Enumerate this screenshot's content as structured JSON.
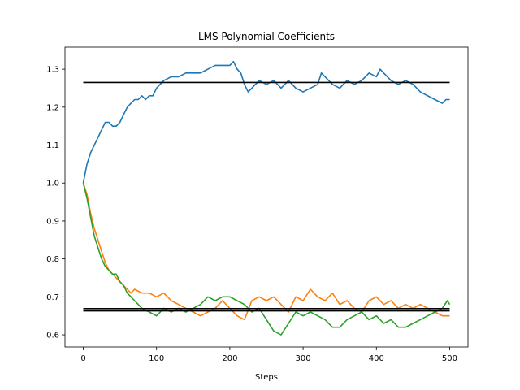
{
  "chart_data": {
    "type": "line",
    "title": "LMS Polynomial Coefficients",
    "xlabel": "Steps",
    "ylabel": "",
    "xlim": [
      -25,
      525
    ],
    "ylim": [
      0.568,
      1.358
    ],
    "xticks": [
      0,
      100,
      200,
      300,
      400,
      500
    ],
    "yticks": [
      0.6,
      0.7,
      0.8,
      0.9,
      1.0,
      1.1,
      1.2,
      1.3
    ],
    "grid": false,
    "legend": "none",
    "series": [
      {
        "color": "#1f77b4",
        "x": [
          0,
          5,
          10,
          15,
          20,
          25,
          30,
          35,
          40,
          45,
          50,
          55,
          60,
          65,
          70,
          75,
          80,
          85,
          90,
          95,
          100,
          110,
          120,
          130,
          140,
          150,
          160,
          170,
          180,
          190,
          200,
          205,
          210,
          215,
          220,
          225,
          230,
          240,
          250,
          260,
          270,
          280,
          290,
          300,
          310,
          320,
          325,
          330,
          340,
          350,
          360,
          370,
          380,
          390,
          400,
          405,
          410,
          420,
          430,
          440,
          450,
          460,
          470,
          480,
          490,
          495,
          500
        ],
        "y": [
          1.0,
          1.05,
          1.08,
          1.1,
          1.12,
          1.14,
          1.16,
          1.16,
          1.15,
          1.15,
          1.16,
          1.18,
          1.2,
          1.21,
          1.22,
          1.22,
          1.23,
          1.22,
          1.23,
          1.23,
          1.25,
          1.27,
          1.28,
          1.28,
          1.29,
          1.29,
          1.29,
          1.3,
          1.31,
          1.31,
          1.31,
          1.32,
          1.3,
          1.29,
          1.26,
          1.24,
          1.25,
          1.27,
          1.26,
          1.27,
          1.25,
          1.27,
          1.25,
          1.24,
          1.25,
          1.26,
          1.29,
          1.28,
          1.26,
          1.25,
          1.27,
          1.26,
          1.27,
          1.29,
          1.28,
          1.3,
          1.29,
          1.27,
          1.26,
          1.27,
          1.26,
          1.24,
          1.23,
          1.22,
          1.21,
          1.22,
          1.22
        ]
      },
      {
        "color": "#ff7f0e",
        "x": [
          0,
          5,
          10,
          15,
          20,
          25,
          30,
          35,
          40,
          45,
          50,
          55,
          60,
          65,
          70,
          80,
          90,
          100,
          110,
          120,
          130,
          140,
          150,
          160,
          170,
          180,
          190,
          200,
          210,
          220,
          230,
          240,
          250,
          260,
          270,
          280,
          290,
          300,
          310,
          320,
          330,
          340,
          350,
          360,
          370,
          380,
          390,
          400,
          410,
          420,
          430,
          440,
          450,
          460,
          470,
          480,
          490,
          500
        ],
        "y": [
          1.0,
          0.97,
          0.92,
          0.88,
          0.85,
          0.82,
          0.79,
          0.77,
          0.76,
          0.75,
          0.74,
          0.73,
          0.72,
          0.71,
          0.72,
          0.71,
          0.71,
          0.7,
          0.71,
          0.69,
          0.68,
          0.67,
          0.66,
          0.65,
          0.66,
          0.67,
          0.69,
          0.67,
          0.65,
          0.64,
          0.69,
          0.7,
          0.69,
          0.7,
          0.68,
          0.66,
          0.7,
          0.69,
          0.72,
          0.7,
          0.69,
          0.71,
          0.68,
          0.69,
          0.67,
          0.66,
          0.69,
          0.7,
          0.68,
          0.69,
          0.67,
          0.68,
          0.67,
          0.68,
          0.67,
          0.66,
          0.65,
          0.65
        ]
      },
      {
        "color": "#2ca02c",
        "x": [
          0,
          5,
          10,
          15,
          20,
          25,
          30,
          35,
          40,
          45,
          50,
          55,
          60,
          65,
          70,
          75,
          80,
          90,
          100,
          110,
          120,
          130,
          140,
          150,
          160,
          170,
          180,
          190,
          200,
          210,
          220,
          230,
          240,
          250,
          260,
          270,
          280,
          290,
          300,
          310,
          320,
          330,
          340,
          350,
          360,
          370,
          380,
          390,
          400,
          410,
          420,
          430,
          440,
          450,
          460,
          470,
          480,
          490,
          497,
          500
        ],
        "y": [
          1.0,
          0.96,
          0.91,
          0.86,
          0.83,
          0.8,
          0.78,
          0.77,
          0.76,
          0.76,
          0.74,
          0.73,
          0.71,
          0.7,
          0.69,
          0.68,
          0.67,
          0.66,
          0.65,
          0.67,
          0.66,
          0.67,
          0.66,
          0.67,
          0.68,
          0.7,
          0.69,
          0.7,
          0.7,
          0.69,
          0.68,
          0.66,
          0.67,
          0.64,
          0.61,
          0.6,
          0.63,
          0.66,
          0.65,
          0.66,
          0.65,
          0.64,
          0.62,
          0.62,
          0.64,
          0.65,
          0.66,
          0.64,
          0.65,
          0.63,
          0.64,
          0.62,
          0.62,
          0.63,
          0.64,
          0.65,
          0.66,
          0.67,
          0.69,
          0.68
        ]
      },
      {
        "color": "#000000",
        "x": [
          0,
          500
        ],
        "y": [
          1.265,
          1.265
        ]
      },
      {
        "color": "#000000",
        "x": [
          0,
          500
        ],
        "y": [
          0.669,
          0.669
        ]
      },
      {
        "color": "#000000",
        "x": [
          0,
          500
        ],
        "y": [
          0.663,
          0.663
        ]
      }
    ]
  }
}
